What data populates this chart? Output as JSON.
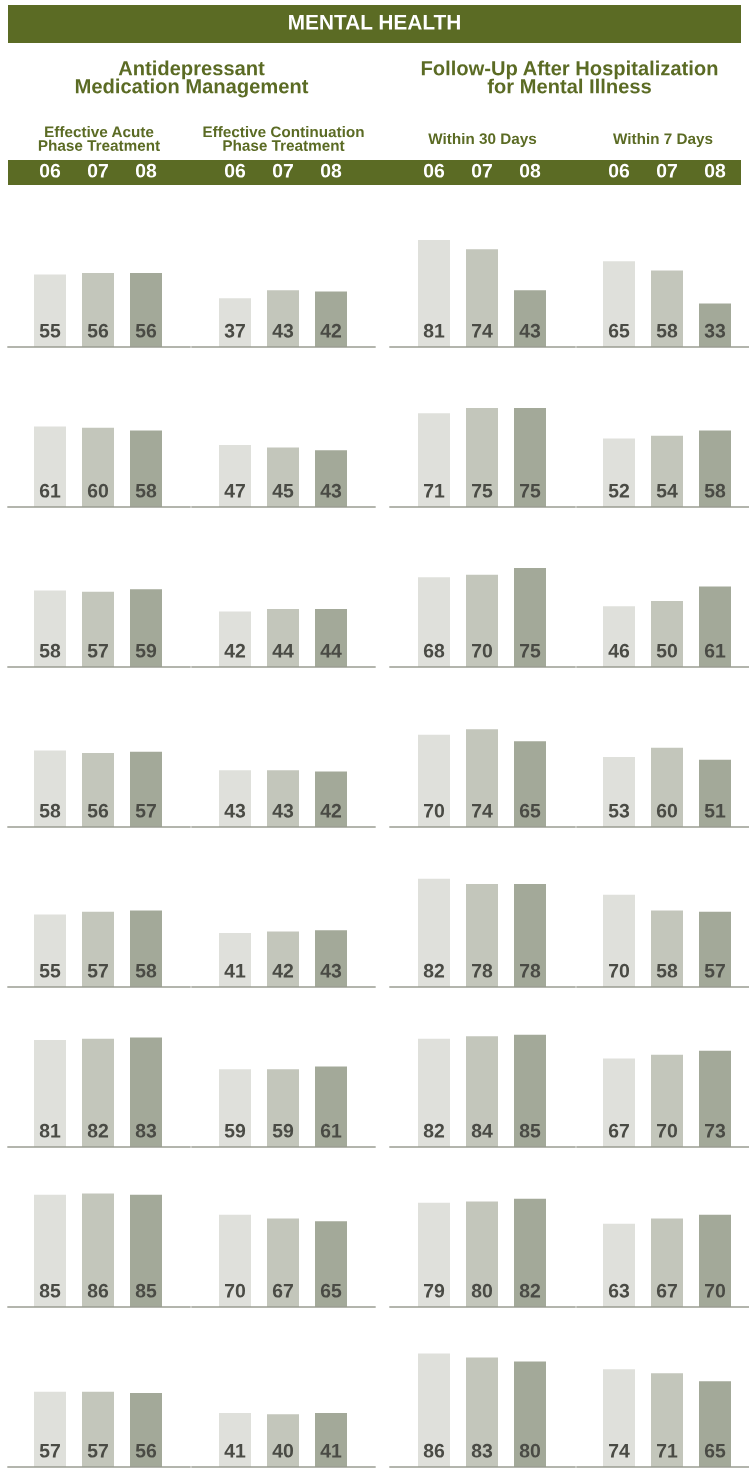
{
  "chart_data": [
    {
      "type": "other",
      "title": "MENTAL HEALTH"
    },
    {
      "type": "other",
      "title": "Antidepressant Medication Management"
    },
    {
      "type": "other",
      "title": "Follow-Up After Hospitalization for Mental Illness"
    },
    {
      "type": "bar",
      "title": "Effective Acute Phase Treatment",
      "categories": [
        "06",
        "07",
        "08"
      ],
      "values": [
        55,
        56,
        56
      ],
      "colors": [
        "#dfe0db",
        "#c3c6bb",
        "#a3a999"
      ],
      "data_labels": true,
      "tick_labels": "x"
    },
    {
      "type": "bar",
      "title": "Effective Continuation Phase Treatment",
      "categories": [
        "06",
        "07",
        "08"
      ],
      "values": [
        37,
        43,
        42
      ],
      "colors": [
        "#dfe0db",
        "#c3c6bb",
        "#a3a999"
      ],
      "data_labels": true,
      "tick_labels": "x"
    },
    {
      "type": "bar",
      "title": "Within 30 Days",
      "categories": [
        "06",
        "07",
        "08"
      ],
      "values": [
        81,
        74,
        43
      ],
      "colors": [
        "#dfe0db",
        "#c3c6bb",
        "#a3a999"
      ],
      "data_labels": true,
      "tick_labels": "x"
    },
    {
      "type": "bar",
      "title": "Within 7 Days",
      "categories": [
        "06",
        "07",
        "08"
      ],
      "values": [
        65,
        58,
        33
      ],
      "colors": [
        "#dfe0db",
        "#c3c6bb",
        "#a3a999"
      ],
      "data_labels": true,
      "tick_labels": "x"
    },
    {
      "type": "bar",
      "categories": [
        "06",
        "07",
        "08"
      ],
      "values": [
        61,
        60,
        58
      ],
      "colors": [
        "#dfe0db",
        "#c3c6bb",
        "#a3a999"
      ],
      "data_labels": true,
      "tick_labels": false
    },
    {
      "type": "bar",
      "categories": [
        "06",
        "07",
        "08"
      ],
      "values": [
        47,
        45,
        43
      ],
      "colors": [
        "#dfe0db",
        "#c3c6bb",
        "#a3a999"
      ],
      "data_labels": true,
      "tick_labels": false
    },
    {
      "type": "bar",
      "categories": [
        "06",
        "07",
        "08"
      ],
      "values": [
        71,
        75,
        75
      ],
      "colors": [
        "#dfe0db",
        "#c3c6bb",
        "#a3a999"
      ],
      "data_labels": true,
      "tick_labels": false
    },
    {
      "type": "bar",
      "categories": [
        "06",
        "07",
        "08"
      ],
      "values": [
        52,
        54,
        58
      ],
      "colors": [
        "#dfe0db",
        "#c3c6bb",
        "#a3a999"
      ],
      "data_labels": true,
      "tick_labels": false
    },
    {
      "type": "bar",
      "categories": [
        "06",
        "07",
        "08"
      ],
      "values": [
        58,
        57,
        59
      ],
      "colors": [
        "#dfe0db",
        "#c3c6bb",
        "#a3a999"
      ],
      "data_labels": true,
      "tick_labels": false
    },
    {
      "type": "bar",
      "categories": [
        "06",
        "07",
        "08"
      ],
      "values": [
        42,
        44,
        44
      ],
      "colors": [
        "#dfe0db",
        "#c3c6bb",
        "#a3a999"
      ],
      "data_labels": true,
      "tick_labels": false
    },
    {
      "type": "bar",
      "categories": [
        "06",
        "07",
        "08"
      ],
      "values": [
        68,
        70,
        75
      ],
      "colors": [
        "#dfe0db",
        "#c3c6bb",
        "#a3a999"
      ],
      "data_labels": true,
      "tick_labels": false
    },
    {
      "type": "bar",
      "categories": [
        "06",
        "07",
        "08"
      ],
      "values": [
        46,
        50,
        61
      ],
      "colors": [
        "#dfe0db",
        "#c3c6bb",
        "#a3a999"
      ],
      "data_labels": true,
      "tick_labels": false
    },
    {
      "type": "bar",
      "categories": [
        "06",
        "07",
        "08"
      ],
      "values": [
        58,
        56,
        57
      ],
      "colors": [
        "#dfe0db",
        "#c3c6bb",
        "#a3a999"
      ],
      "data_labels": true,
      "tick_labels": false
    },
    {
      "type": "bar",
      "categories": [
        "06",
        "07",
        "08"
      ],
      "values": [
        43,
        43,
        42
      ],
      "colors": [
        "#dfe0db",
        "#c3c6bb",
        "#a3a999"
      ],
      "data_labels": true,
      "tick_labels": false
    },
    {
      "type": "bar",
      "categories": [
        "06",
        "07",
        "08"
      ],
      "values": [
        70,
        74,
        65
      ],
      "colors": [
        "#dfe0db",
        "#c3c6bb",
        "#a3a999"
      ],
      "data_labels": true,
      "tick_labels": false
    },
    {
      "type": "bar",
      "categories": [
        "06",
        "07",
        "08"
      ],
      "values": [
        53,
        60,
        51
      ],
      "colors": [
        "#dfe0db",
        "#c3c6bb",
        "#a3a999"
      ],
      "data_labels": true,
      "tick_labels": false
    },
    {
      "type": "bar",
      "categories": [
        "06",
        "07",
        "08"
      ],
      "values": [
        55,
        57,
        58
      ],
      "colors": [
        "#dfe0db",
        "#c3c6bb",
        "#a3a999"
      ],
      "data_labels": true,
      "tick_labels": false
    },
    {
      "type": "bar",
      "categories": [
        "06",
        "07",
        "08"
      ],
      "values": [
        41,
        42,
        43
      ],
      "colors": [
        "#dfe0db",
        "#c3c6bb",
        "#a3a999"
      ],
      "data_labels": true,
      "tick_labels": false
    },
    {
      "type": "bar",
      "categories": [
        "06",
        "07",
        "08"
      ],
      "values": [
        82,
        78,
        78
      ],
      "colors": [
        "#dfe0db",
        "#c3c6bb",
        "#a3a999"
      ],
      "data_labels": true,
      "tick_labels": false
    },
    {
      "type": "bar",
      "categories": [
        "06",
        "07",
        "08"
      ],
      "values": [
        70,
        58,
        57
      ],
      "colors": [
        "#dfe0db",
        "#c3c6bb",
        "#a3a999"
      ],
      "data_labels": true,
      "tick_labels": false
    },
    {
      "type": "bar",
      "categories": [
        "06",
        "07",
        "08"
      ],
      "values": [
        81,
        82,
        83
      ],
      "colors": [
        "#dfe0db",
        "#c3c6bb",
        "#a3a999"
      ],
      "data_labels": true,
      "tick_labels": false
    },
    {
      "type": "bar",
      "categories": [
        "06",
        "07",
        "08"
      ],
      "values": [
        59,
        59,
        61
      ],
      "colors": [
        "#dfe0db",
        "#c3c6bb",
        "#a3a999"
      ],
      "data_labels": true,
      "tick_labels": false
    },
    {
      "type": "bar",
      "categories": [
        "06",
        "07",
        "08"
      ],
      "values": [
        82,
        84,
        85
      ],
      "colors": [
        "#dfe0db",
        "#c3c6bb",
        "#a3a999"
      ],
      "data_labels": true,
      "tick_labels": false
    },
    {
      "type": "bar",
      "categories": [
        "06",
        "07",
        "08"
      ],
      "values": [
        67,
        70,
        73
      ],
      "colors": [
        "#dfe0db",
        "#c3c6bb",
        "#a3a999"
      ],
      "data_labels": true,
      "tick_labels": false
    },
    {
      "type": "bar",
      "categories": [
        "06",
        "07",
        "08"
      ],
      "values": [
        85,
        86,
        85
      ],
      "colors": [
        "#dfe0db",
        "#c3c6bb",
        "#a3a999"
      ],
      "data_labels": true,
      "tick_labels": false
    },
    {
      "type": "bar",
      "categories": [
        "06",
        "07",
        "08"
      ],
      "values": [
        70,
        67,
        65
      ],
      "colors": [
        "#dfe0db",
        "#c3c6bb",
        "#a3a999"
      ],
      "data_labels": true,
      "tick_labels": false
    },
    {
      "type": "bar",
      "categories": [
        "06",
        "07",
        "08"
      ],
      "values": [
        79,
        80,
        82
      ],
      "colors": [
        "#dfe0db",
        "#c3c6bb",
        "#a3a999"
      ],
      "data_labels": true,
      "tick_labels": false
    },
    {
      "type": "bar",
      "categories": [
        "06",
        "07",
        "08"
      ],
      "values": [
        63,
        67,
        70
      ],
      "colors": [
        "#dfe0db",
        "#c3c6bb",
        "#a3a999"
      ],
      "data_labels": true,
      "tick_labels": false
    },
    {
      "type": "bar",
      "categories": [
        "06",
        "07",
        "08"
      ],
      "values": [
        57,
        57,
        56
      ],
      "colors": [
        "#dfe0db",
        "#c3c6bb",
        "#a3a999"
      ],
      "data_labels": true,
      "tick_labels": false
    },
    {
      "type": "bar",
      "categories": [
        "06",
        "07",
        "08"
      ],
      "values": [
        41,
        40,
        41
      ],
      "colors": [
        "#dfe0db",
        "#c3c6bb",
        "#a3a999"
      ],
      "data_labels": true,
      "tick_labels": false
    },
    {
      "type": "bar",
      "categories": [
        "06",
        "07",
        "08"
      ],
      "values": [
        86,
        83,
        80
      ],
      "colors": [
        "#dfe0db",
        "#c3c6bb",
        "#a3a999"
      ],
      "data_labels": true,
      "tick_labels": false
    },
    {
      "type": "bar",
      "categories": [
        "06",
        "07",
        "08"
      ],
      "values": [
        74,
        71,
        65
      ],
      "colors": [
        "#dfe0db",
        "#c3c6bb",
        "#a3a999"
      ],
      "data_labels": true,
      "tick_labels": false
    }
  ]
}
